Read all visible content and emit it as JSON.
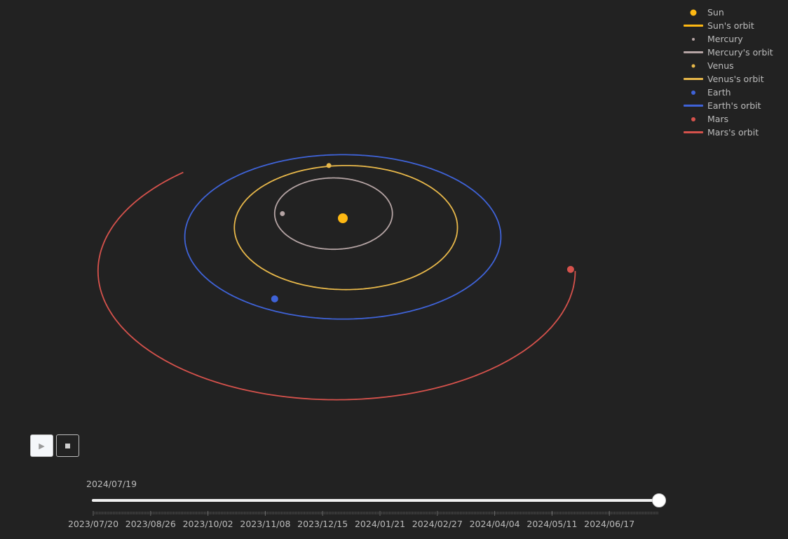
{
  "chart_data": {
    "type": "scatter",
    "title": "",
    "xlabel": "",
    "ylabel": "",
    "grid": false,
    "legend_position": "top-right",
    "bodies": [
      {
        "name": "Sun",
        "orbit_name": "Sun's orbit",
        "color": "#FDB813",
        "marker": "large-dot",
        "current": [
          0,
          0
        ],
        "orbit": []
      },
      {
        "name": "Mercury",
        "orbit_name": "Mercury's orbit",
        "color": "#B5A4A4",
        "marker": "small-dot",
        "current": [
          -0.39,
          0.03
        ],
        "orbit_type": "closed",
        "orbit": {
          "cx": -0.06,
          "cy": 0.03,
          "rx": 0.38,
          "ry": 0.23
        }
      },
      {
        "name": "Venus",
        "orbit_name": "Venus's orbit",
        "color": "#E8B84A",
        "marker": "small-dot",
        "current": [
          -0.09,
          0.34
        ],
        "orbit_type": "closed",
        "orbit": {
          "cx": 0.02,
          "cy": -0.06,
          "rx": 0.72,
          "ry": 0.4
        }
      },
      {
        "name": "Earth",
        "orbit_name": "Earth's orbit",
        "color": "#3F63D8",
        "marker": "dot",
        "current": [
          -0.44,
          -0.52
        ],
        "orbit_type": "closed",
        "orbit": {
          "cx": 0.0,
          "cy": -0.12,
          "rx": 1.02,
          "ry": 0.53
        }
      },
      {
        "name": "Mars",
        "orbit_name": "Mars's orbit",
        "color": "#D6524C",
        "marker": "dot",
        "current": [
          1.47,
          -0.33
        ],
        "orbit_type": "arc",
        "orbit": {
          "cx": -0.04,
          "cy": -0.34,
          "rx": 1.54,
          "ry": 0.83,
          "start_deg": 130,
          "end_deg": 360
        }
      }
    ]
  },
  "legend": [
    {
      "label": "Sun",
      "kind": "dot",
      "color": "#FDB813",
      "size": 9
    },
    {
      "label": "Sun's orbit",
      "kind": "line",
      "color": "#FDB813"
    },
    {
      "label": "Mercury",
      "kind": "dot",
      "color": "#B5A4A4",
      "size": 4
    },
    {
      "label": "Mercury's orbit",
      "kind": "line",
      "color": "#B5A4A4"
    },
    {
      "label": "Venus",
      "kind": "dot",
      "color": "#E8B84A",
      "size": 5
    },
    {
      "label": "Venus's orbit",
      "kind": "line",
      "color": "#E8B84A"
    },
    {
      "label": "Earth",
      "kind": "dot",
      "color": "#3F63D8",
      "size": 6
    },
    {
      "label": "Earth's orbit",
      "kind": "line",
      "color": "#3F63D8"
    },
    {
      "label": "Mars",
      "kind": "dot",
      "color": "#D6524C",
      "size": 6
    },
    {
      "label": "Mars's orbit",
      "kind": "line",
      "color": "#D6524C"
    }
  ],
  "controls": {
    "play_icon": "play-icon",
    "stop_icon": "stop-icon",
    "play_glyph": "▶"
  },
  "slider": {
    "current_label": "2024/07/19",
    "value_fraction": 1.0,
    "tick_labels": [
      "2023/07/20",
      "2023/08/26",
      "2023/10/02",
      "2023/11/08",
      "2023/12/15",
      "2024/01/21",
      "2024/02/27",
      "2024/04/04",
      "2024/05/11",
      "2024/06/17"
    ]
  }
}
